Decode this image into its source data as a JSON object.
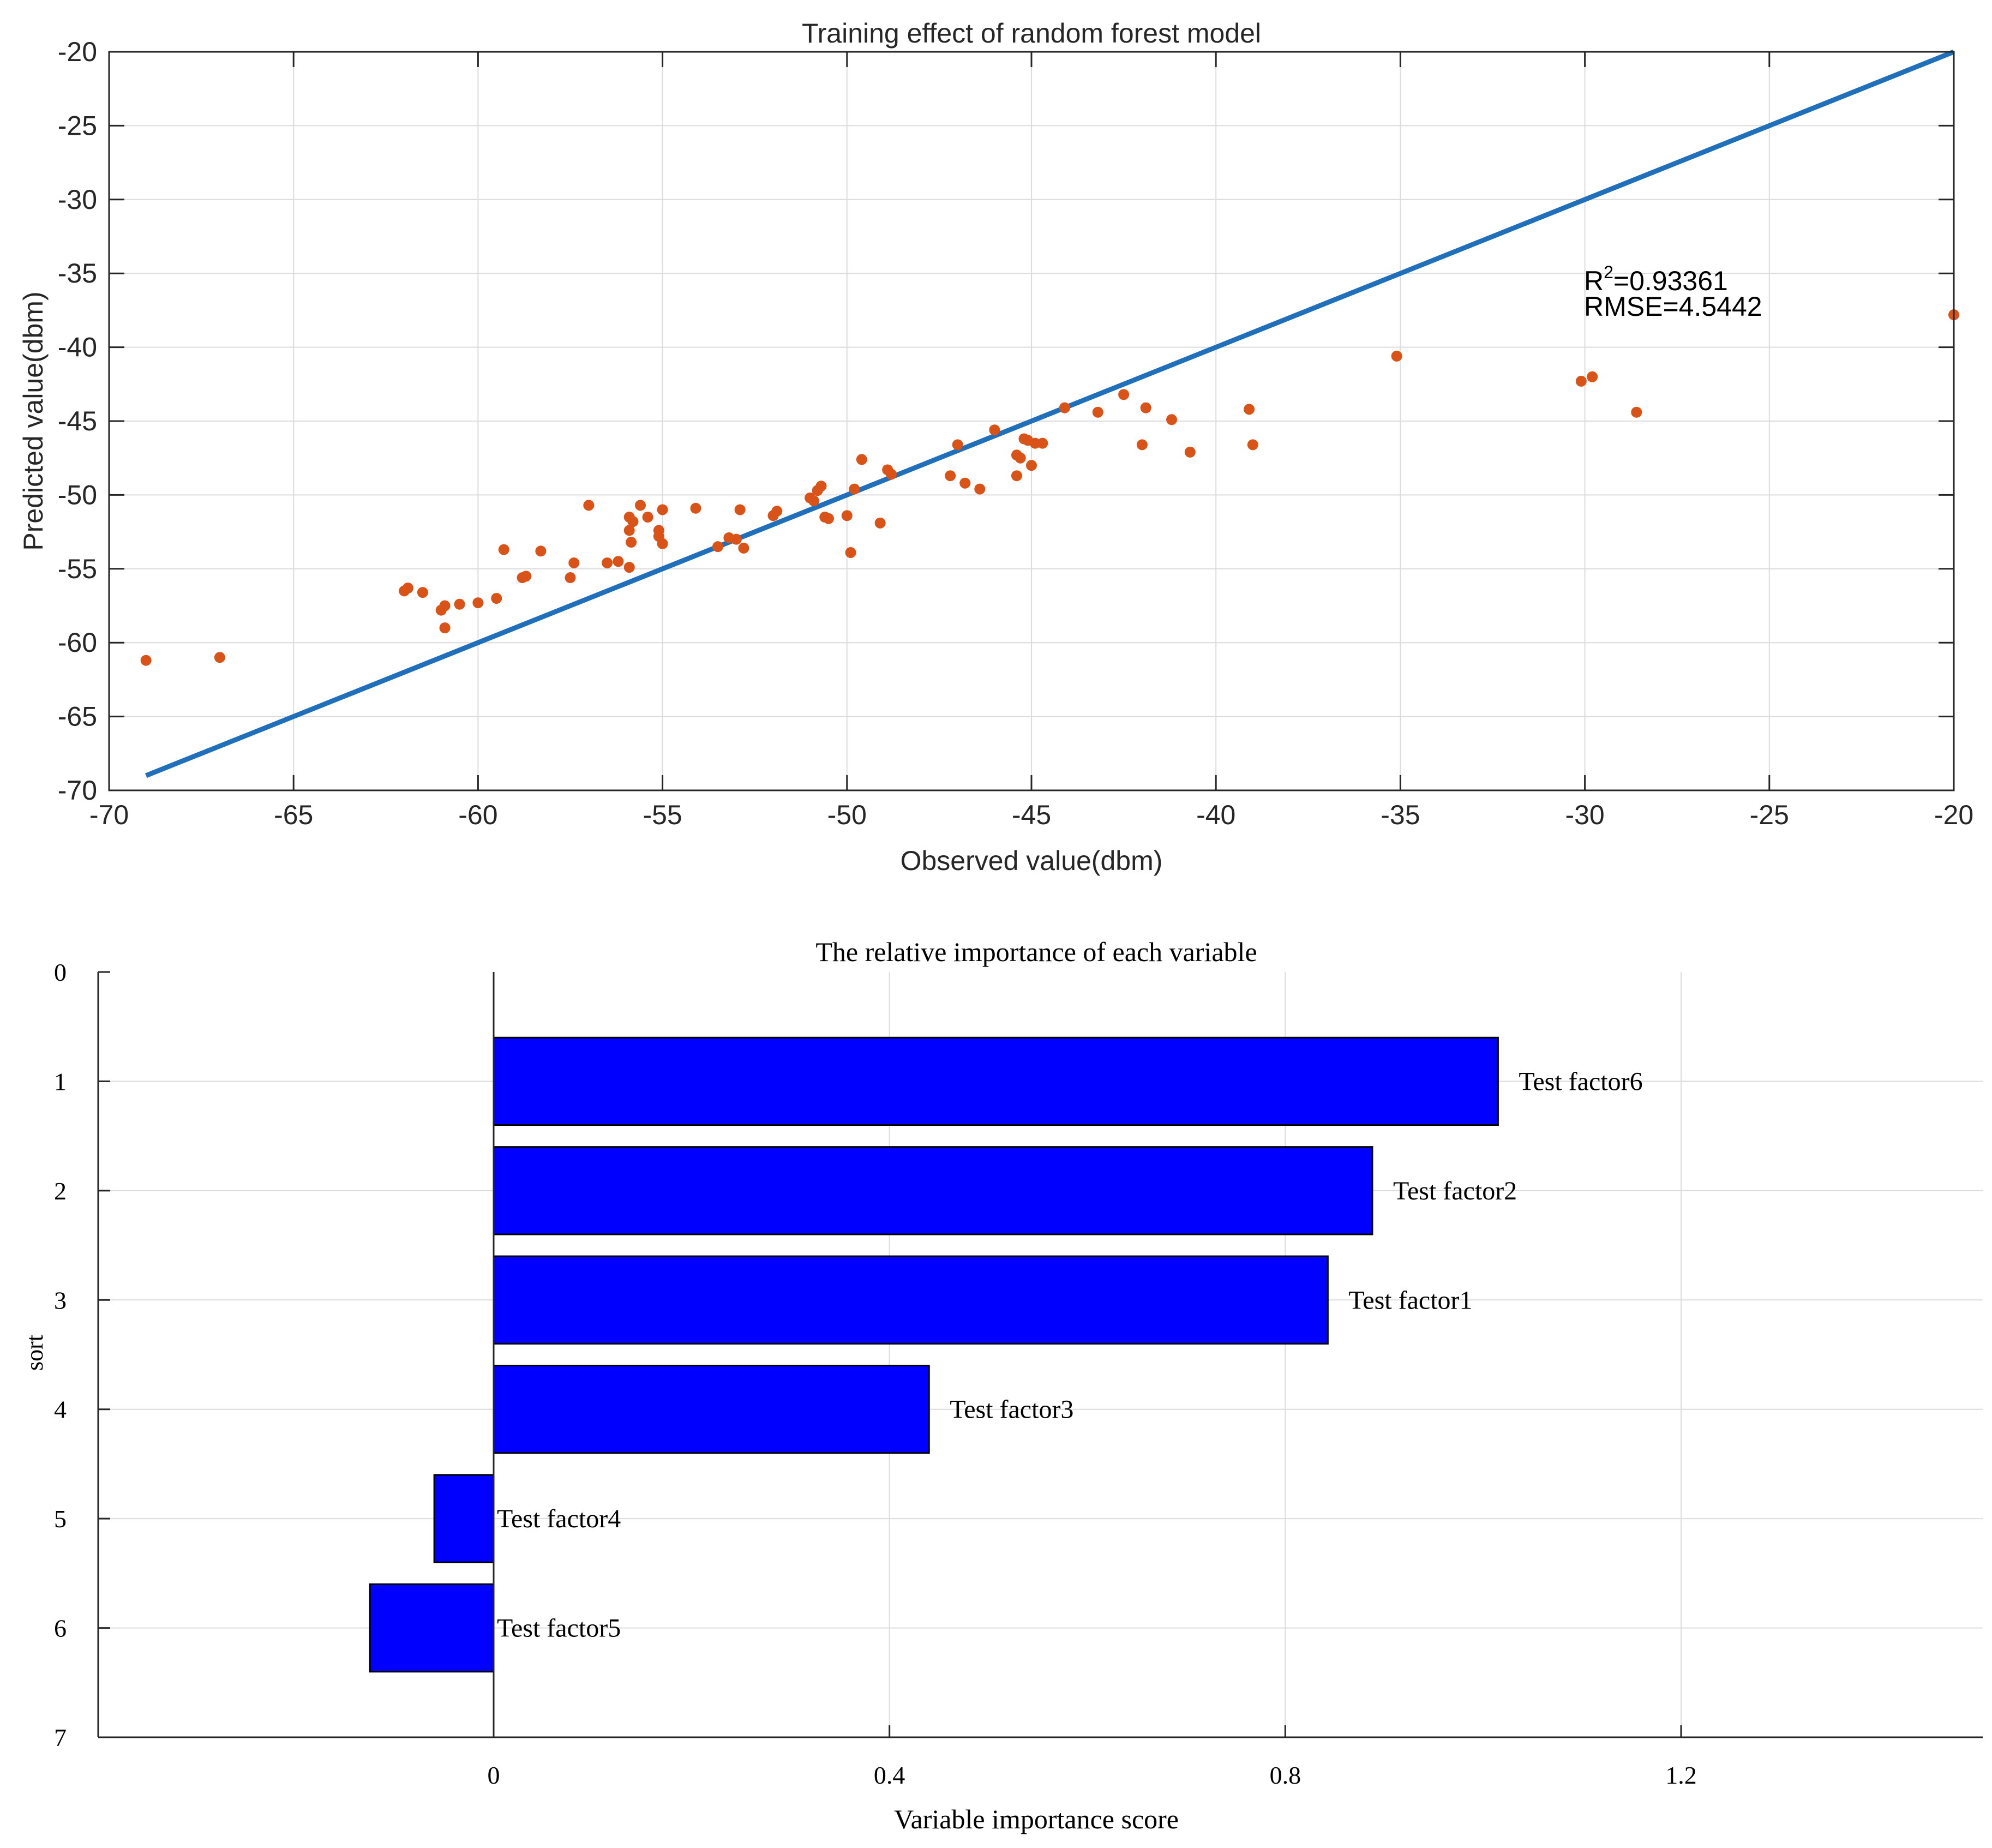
{
  "chart_data": [
    {
      "type": "scatter",
      "title": "Training effect of random forest model",
      "xlabel": "Observed value(dbm)",
      "ylabel": "Predicted value(dbm)",
      "xlim": [
        -70,
        -20
      ],
      "ylim": [
        -70,
        -20
      ],
      "xticks": [
        -70,
        -65,
        -60,
        -55,
        -50,
        -45,
        -40,
        -35,
        -30,
        -25,
        -20
      ],
      "yticks": [
        -20,
        -25,
        -30,
        -35,
        -40,
        -45,
        -50,
        -55,
        -60,
        -65,
        -70
      ],
      "grid": true,
      "annotation": {
        "r2_prefix": "R",
        "r2_exp": "2",
        "r2_value": "=0.93361",
        "rmse": "RMSE=4.5442"
      },
      "colors": {
        "line": "#1f6fba",
        "points": "#d95319",
        "axes": "#262626",
        "grid": "#dcdcdc"
      },
      "series": [
        {
          "name": "fit line",
          "kind": "line",
          "x": [
            -69,
            -20
          ],
          "y": [
            -69,
            -20
          ]
        },
        {
          "name": "samples",
          "kind": "scatter",
          "points": [
            [
              -69,
              -61.2
            ],
            [
              -67,
              -61
            ],
            [
              -62,
              -56.5
            ],
            [
              -61.9,
              -56.3
            ],
            [
              -61.5,
              -56.6
            ],
            [
              -61,
              -57.8
            ],
            [
              -60.9,
              -57.5
            ],
            [
              -60.9,
              -59
            ],
            [
              -60.5,
              -57.4
            ],
            [
              -60,
              -57.3
            ],
            [
              -59.5,
              -57
            ],
            [
              -59.3,
              -53.7
            ],
            [
              -58.8,
              -55.6
            ],
            [
              -58.7,
              -55.5
            ],
            [
              -58.3,
              -53.8
            ],
            [
              -57.5,
              -55.6
            ],
            [
              -57.4,
              -54.6
            ],
            [
              -57,
              -50.7
            ],
            [
              -56.5,
              -54.6
            ],
            [
              -56.2,
              -54.5
            ],
            [
              -55.9,
              -51.5
            ],
            [
              -55.9,
              -52.4
            ],
            [
              -55.85,
              -53.2
            ],
            [
              -55.9,
              -54.9
            ],
            [
              -55.8,
              -51.8
            ],
            [
              -55.6,
              -50.7
            ],
            [
              -55.4,
              -51.5
            ],
            [
              -55.1,
              -52.4
            ],
            [
              -55,
              -51
            ],
            [
              -55,
              -53.3
            ],
            [
              -55.1,
              -52.8
            ],
            [
              -54.1,
              -50.9
            ],
            [
              -53.5,
              -53.5
            ],
            [
              -53.2,
              -52.9
            ],
            [
              -53,
              -53
            ],
            [
              -52.9,
              -51
            ],
            [
              -52.8,
              -53.6
            ],
            [
              -52,
              -51.4
            ],
            [
              -51.9,
              -51.1
            ],
            [
              -51,
              -50.2
            ],
            [
              -50.9,
              -50.4
            ],
            [
              -50.8,
              -49.7
            ],
            [
              -50.7,
              -49.4
            ],
            [
              -50.6,
              -51.5
            ],
            [
              -50.5,
              -51.6
            ],
            [
              -50,
              -51.4
            ],
            [
              -49.9,
              -53.9
            ],
            [
              -49.8,
              -49.6
            ],
            [
              -49.6,
              -47.6
            ],
            [
              -49.1,
              -51.9
            ],
            [
              -48.9,
              -48.3
            ],
            [
              -48.8,
              -48.6
            ],
            [
              -47.2,
              -48.7
            ],
            [
              -47,
              -46.6
            ],
            [
              -46.8,
              -49.2
            ],
            [
              -46.4,
              -49.6
            ],
            [
              -46,
              -45.6
            ],
            [
              -45.4,
              -48.7
            ],
            [
              -45.4,
              -47.3
            ],
            [
              -45.3,
              -47.5
            ],
            [
              -45.2,
              -46.2
            ],
            [
              -45.1,
              -46.3
            ],
            [
              -45,
              -48
            ],
            [
              -44.9,
              -46.5
            ],
            [
              -44.7,
              -46.5
            ],
            [
              -44.1,
              -44.1
            ],
            [
              -43.2,
              -44.4
            ],
            [
              -42.5,
              -43.2
            ],
            [
              -42,
              -46.6
            ],
            [
              -41.9,
              -44.1
            ],
            [
              -41.2,
              -44.9
            ],
            [
              -40.7,
              -47.1
            ],
            [
              -39.1,
              -44.2
            ],
            [
              -39,
              -46.6
            ],
            [
              -35.1,
              -40.6
            ],
            [
              -30.1,
              -42.3
            ],
            [
              -29.8,
              -42
            ],
            [
              -28.6,
              -44.4
            ],
            [
              -20,
              -37.8
            ]
          ]
        }
      ]
    },
    {
      "type": "bar",
      "orientation": "horizontal",
      "title": "The relative importance of each variable",
      "xlabel": "Variable importance score",
      "ylabel": "sort",
      "xlim": [
        -0.4,
        1.5
      ],
      "ylim": [
        0,
        7
      ],
      "xticks": [
        0,
        0.4,
        0.8,
        1.2
      ],
      "xtick_labels": [
        "0",
        "0.4",
        "0.8",
        "1.2"
      ],
      "yticks": [
        0,
        1,
        2,
        3,
        4,
        5,
        6,
        7
      ],
      "grid": true,
      "colors": {
        "bar": "#0000ff",
        "bar_edge": "#000000",
        "axes": "#262626",
        "grid": "#dcdcdc"
      },
      "categories": [
        "Test factor6",
        "Test factor2",
        "Test factor1",
        "Test factor3",
        "Test factor4",
        "Test factor5"
      ],
      "values": [
        1.015,
        0.888,
        0.843,
        0.44,
        -0.06,
        -0.125
      ]
    }
  ]
}
